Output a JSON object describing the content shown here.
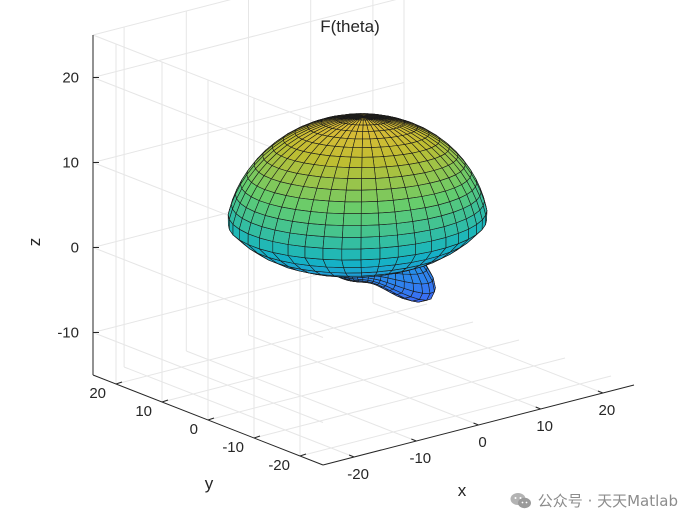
{
  "chart_data": {
    "type": "surface3d",
    "title": "F(theta)",
    "xlabel": "x",
    "ylabel": "y",
    "zlabel": "z",
    "xlim": [
      -25,
      25
    ],
    "ylim": [
      -25,
      25
    ],
    "zlim": [
      -15,
      25
    ],
    "xticks": [
      -20,
      -10,
      0,
      10,
      20
    ],
    "yticks": [
      20,
      10,
      0,
      -10,
      -20
    ],
    "zticks": [
      20,
      10,
      0,
      -10
    ],
    "grid": true,
    "colormap": "parula",
    "colors": {
      "low": "#3e26a8",
      "mid": "#2cb4a8",
      "high": "#f9fb0e",
      "axis": "#262626",
      "grid": "#e6e6e6"
    }
  },
  "watermark": {
    "text": "公众号 · 天天Matlab",
    "icon": "wechat-icon"
  }
}
